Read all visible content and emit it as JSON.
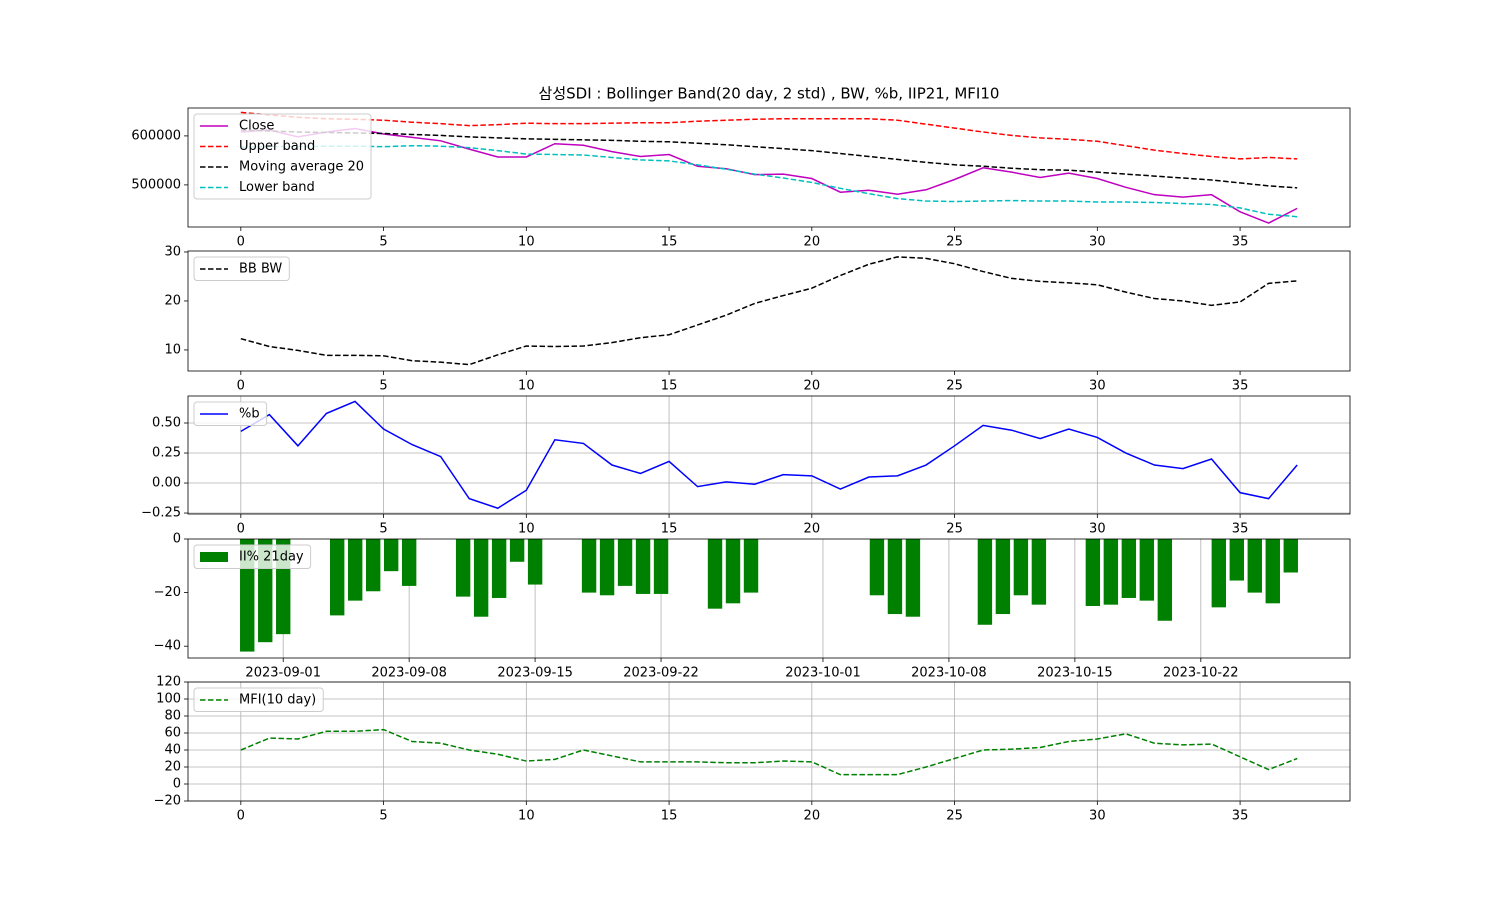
{
  "chart_data": [
    {
      "type": "line",
      "title": "삼성SDI : Bollinger Band(20 day, 2 std) , BW, %b, IIP21, MFI10",
      "x": [
        0,
        1,
        2,
        3,
        4,
        5,
        6,
        7,
        8,
        9,
        10,
        11,
        12,
        13,
        14,
        15,
        16,
        17,
        18,
        19,
        20,
        21,
        22,
        23,
        24,
        25,
        26,
        27,
        28,
        29,
        30,
        31,
        32,
        33,
        34,
        35,
        36,
        37
      ],
      "xlim": [
        -1.85,
        38.85
      ],
      "xticks": [
        0,
        5,
        10,
        15,
        20,
        25,
        30,
        35
      ],
      "ylim": [
        414000,
        657000
      ],
      "yticks": [
        500000,
        600000
      ],
      "legend": "upper left",
      "series": [
        {
          "name": "Close",
          "color": "#bf00bf",
          "linestyle": "solid",
          "values": [
            608000,
            612000,
            598000,
            608000,
            615000,
            604000,
            597000,
            590000,
            573000,
            557000,
            557000,
            584000,
            581000,
            568000,
            558000,
            562000,
            538000,
            533000,
            521000,
            522000,
            513000,
            485000,
            489000,
            481000,
            490000,
            511000,
            535000,
            526000,
            515000,
            524000,
            513000,
            495000,
            480000,
            475000,
            480000,
            445000,
            422000,
            452000
          ]
        },
        {
          "name": "Upper band",
          "color": "#ff0000",
          "linestyle": "dashed",
          "values": [
            648000,
            643000,
            638000,
            635000,
            634000,
            632000,
            628000,
            625000,
            621000,
            623000,
            626000,
            625000,
            625000,
            626000,
            627000,
            627000,
            630000,
            632000,
            634000,
            635000,
            635000,
            635000,
            635000,
            632000,
            624000,
            616000,
            608000,
            601000,
            596000,
            593000,
            589000,
            580000,
            571000,
            564000,
            558000,
            553000,
            556000,
            553000
          ]
        },
        {
          "name": "Moving average 20",
          "color": "#000000",
          "linestyle": "dashed",
          "values": [
            612000,
            610000,
            608000,
            607000,
            606000,
            605000,
            603000,
            601000,
            598000,
            596000,
            594000,
            593000,
            592000,
            591000,
            589000,
            588000,
            585000,
            582000,
            578000,
            574000,
            570000,
            564000,
            558000,
            552000,
            546000,
            541000,
            538000,
            534000,
            531000,
            530000,
            526000,
            522000,
            518000,
            514000,
            510000,
            504000,
            498000,
            494000
          ]
        },
        {
          "name": "Lower band",
          "color": "#00bfbf",
          "linestyle": "dashed",
          "values": [
            577000,
            578000,
            578000,
            579000,
            579000,
            578000,
            580000,
            579000,
            576000,
            570000,
            563000,
            562000,
            561000,
            556000,
            551000,
            549000,
            541000,
            532000,
            522000,
            514000,
            505000,
            493000,
            482000,
            472000,
            467000,
            466000,
            467000,
            468000,
            467000,
            467000,
            465000,
            465000,
            464000,
            462000,
            460000,
            453000,
            440000,
            435000
          ]
        }
      ]
    },
    {
      "type": "line",
      "x": [
        0,
        1,
        2,
        3,
        4,
        5,
        6,
        7,
        8,
        9,
        10,
        11,
        12,
        13,
        14,
        15,
        16,
        17,
        18,
        19,
        20,
        21,
        22,
        23,
        24,
        25,
        26,
        27,
        28,
        29,
        30,
        31,
        32,
        33,
        34,
        35,
        36,
        37
      ],
      "xlim": [
        -1.85,
        38.85
      ],
      "xticks": [
        0,
        5,
        10,
        15,
        20,
        25,
        30,
        35
      ],
      "ylim": [
        5.7,
        30.2
      ],
      "yticks": [
        10,
        20,
        30
      ],
      "legend": "upper left",
      "series": [
        {
          "name": "BB BW",
          "color": "#000000",
          "linestyle": "dashed",
          "values": [
            12.3,
            10.7,
            9.9,
            8.9,
            8.9,
            8.8,
            7.8,
            7.5,
            7.0,
            9.0,
            10.8,
            10.7,
            10.8,
            11.5,
            12.5,
            13.1,
            15.1,
            17.1,
            19.5,
            21.1,
            22.6,
            25.2,
            27.5,
            29.0,
            28.7,
            27.6,
            26.0,
            24.6,
            24.0,
            23.7,
            23.3,
            21.8,
            20.5,
            20.0,
            19.1,
            19.8,
            23.6,
            24.1
          ]
        }
      ]
    },
    {
      "type": "line",
      "grid": "both",
      "x": [
        0,
        1,
        2,
        3,
        4,
        5,
        6,
        7,
        8,
        9,
        10,
        11,
        12,
        13,
        14,
        15,
        16,
        17,
        18,
        19,
        20,
        21,
        22,
        23,
        24,
        25,
        26,
        27,
        28,
        29,
        30,
        31,
        32,
        33,
        34,
        35,
        36,
        37
      ],
      "xlim": [
        -1.85,
        38.85
      ],
      "xticks": [
        0,
        5,
        10,
        15,
        20,
        25,
        30,
        35
      ],
      "ylim": [
        -0.258,
        0.725
      ],
      "yticks": [
        {
          "value": -0.25,
          "label": "−0.25"
        },
        {
          "value": 0,
          "label": "0.00"
        },
        {
          "value": 0.25,
          "label": "0.25"
        },
        {
          "value": 0.5,
          "label": "0.50"
        }
      ],
      "legend": "upper left",
      "series": [
        {
          "name": "%b",
          "color": "#0000ff",
          "linestyle": "solid",
          "values": [
            0.43,
            0.57,
            0.31,
            0.58,
            0.68,
            0.45,
            0.32,
            0.22,
            -0.13,
            -0.21,
            -0.06,
            0.36,
            0.33,
            0.15,
            0.08,
            0.18,
            -0.03,
            0.01,
            -0.01,
            0.07,
            0.06,
            -0.05,
            0.05,
            0.06,
            0.15,
            0.31,
            0.48,
            0.44,
            0.37,
            0.45,
            0.38,
            0.25,
            0.15,
            0.12,
            0.2,
            -0.08,
            -0.13,
            0.15
          ]
        }
      ]
    },
    {
      "type": "bar",
      "grid": "x",
      "x": [
        "2023-08-30",
        "2023-08-31",
        "2023-09-01",
        "2023-09-04",
        "2023-09-05",
        "2023-09-06",
        "2023-09-07",
        "2023-09-08",
        "2023-09-11",
        "2023-09-12",
        "2023-09-13",
        "2023-09-14",
        "2023-09-15",
        "2023-09-18",
        "2023-09-19",
        "2023-09-20",
        "2023-09-21",
        "2023-09-22",
        "2023-09-25",
        "2023-09-26",
        "2023-09-27",
        "2023-10-04",
        "2023-10-05",
        "2023-10-06",
        "2023-10-10",
        "2023-10-11",
        "2023-10-12",
        "2023-10-13",
        "2023-10-16",
        "2023-10-17",
        "2023-10-18",
        "2023-10-19",
        "2023-10-20",
        "2023-10-23",
        "2023-10-24",
        "2023-10-25",
        "2023-10-26",
        "2023-10-27"
      ],
      "xlim": [
        "2023-08-26T17:00",
        "2023-10-30T07:00"
      ],
      "xticks": [
        "2023-09-01",
        "2023-09-08",
        "2023-09-15",
        "2023-09-22",
        "2023-10-01",
        "2023-10-08",
        "2023-10-15",
        "2023-10-22"
      ],
      "ylim": [
        -44.4,
        0
      ],
      "yticks": [
        {
          "value": -40,
          "label": "−40"
        },
        {
          "value": -20,
          "label": "−20"
        },
        0
      ],
      "legend": "upper left",
      "series": [
        {
          "name": "II% 21day",
          "color": "#008000",
          "values": [
            -42,
            -38.5,
            -35.5,
            -28.5,
            -23,
            -19.5,
            -12,
            -17.5,
            -21.5,
            -29,
            -22,
            -8.5,
            -17,
            -20,
            -21,
            -17.5,
            -20.5,
            -20.5,
            -26,
            -24,
            -20,
            -21,
            -28,
            -29,
            -32,
            -28,
            -21,
            -24.5,
            -25,
            -24.5,
            -22,
            -23,
            -30.5,
            -25.5,
            -15.5,
            -20,
            -24,
            -12.5
          ]
        }
      ]
    },
    {
      "type": "line",
      "grid": "both",
      "x": [
        0,
        1,
        2,
        3,
        4,
        5,
        6,
        7,
        8,
        9,
        10,
        11,
        12,
        13,
        14,
        15,
        16,
        17,
        18,
        19,
        20,
        21,
        22,
        23,
        24,
        25,
        26,
        27,
        28,
        29,
        30,
        31,
        32,
        33,
        34,
        35,
        36,
        37
      ],
      "xlim": [
        -1.85,
        38.85
      ],
      "xticks": [
        0,
        5,
        10,
        15,
        20,
        25,
        30,
        35
      ],
      "ylim": [
        -20,
        120
      ],
      "yticks": [
        {
          "value": -20,
          "label": "−20"
        },
        0,
        20,
        40,
        60,
        80,
        100,
        120
      ],
      "legend": "upper left",
      "series": [
        {
          "name": "MFI(10 day)",
          "color": "#008000",
          "linestyle": "dashed",
          "values": [
            40,
            54,
            53,
            62,
            62,
            64,
            50,
            48,
            40,
            35,
            27,
            29,
            40,
            33,
            26,
            26,
            26,
            25,
            25,
            27,
            26,
            11,
            11,
            11,
            20,
            30,
            40,
            41,
            43,
            50,
            53,
            59,
            48,
            46,
            47,
            32,
            17,
            30
          ]
        }
      ]
    }
  ]
}
